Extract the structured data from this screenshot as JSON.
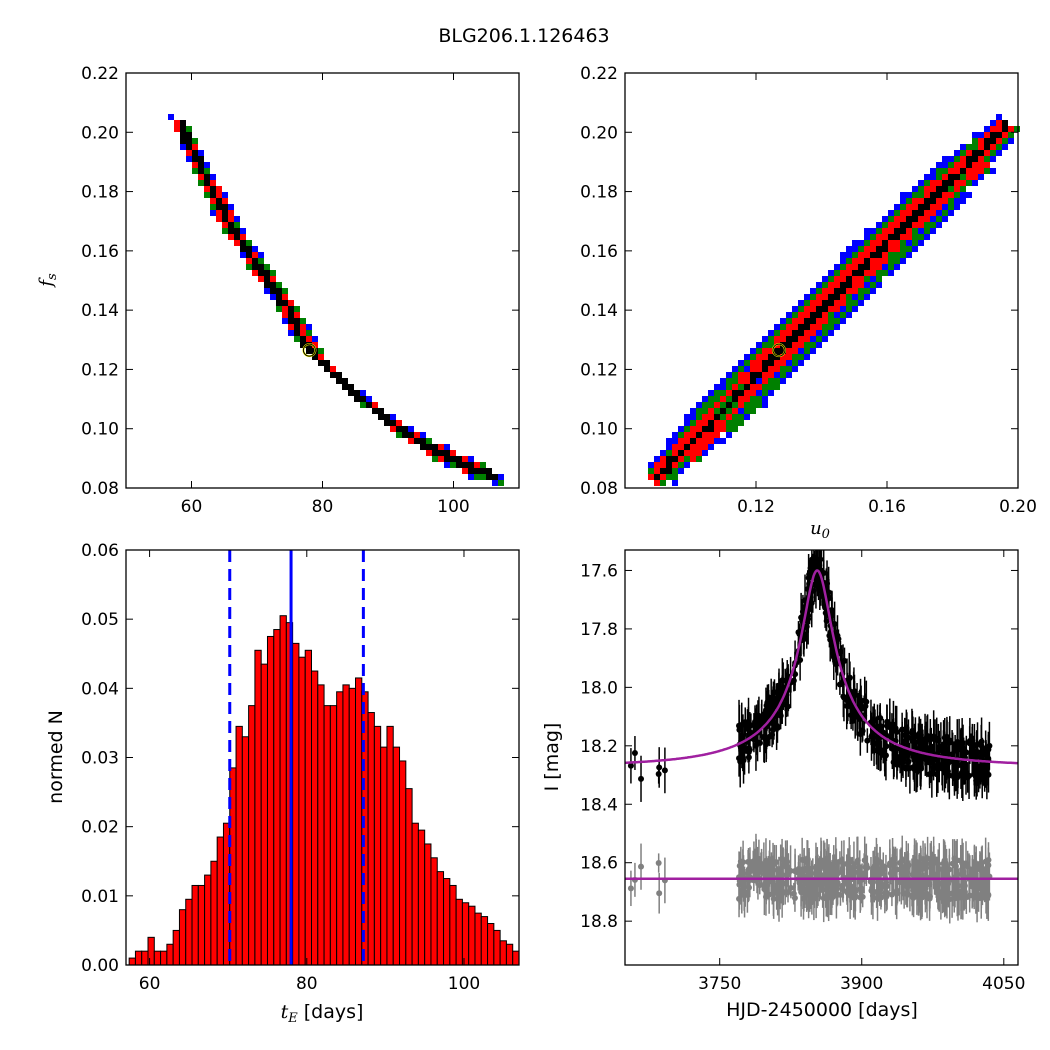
{
  "figure": {
    "title": "BLG206.1.126463"
  },
  "chart_data": [
    {
      "type": "scatter",
      "panel": "top-left",
      "xlabel": "",
      "ylabel": "f_s",
      "xlim": [
        50,
        110
      ],
      "ylim": [
        0.08,
        0.22
      ],
      "xticks": [
        60,
        80,
        100
      ],
      "yticks": [
        0.08,
        0.1,
        0.12,
        0.14,
        0.16,
        0.18,
        0.2,
        0.22
      ],
      "best_fit": {
        "x": 78,
        "y": 0.1265
      },
      "region_colors": [
        "#0000ff",
        "#008000",
        "#ff0000",
        "#000000"
      ],
      "ridge": [
        [
          58,
          0.203
        ],
        [
          62,
          0.185
        ],
        [
          66,
          0.168
        ],
        [
          70,
          0.155
        ],
        [
          74,
          0.143
        ],
        [
          78,
          0.1265
        ],
        [
          84,
          0.114
        ],
        [
          90,
          0.103
        ],
        [
          96,
          0.094
        ],
        [
          102,
          0.088
        ],
        [
          106,
          0.085
        ]
      ]
    },
    {
      "type": "scatter",
      "panel": "top-right",
      "xlabel": "u_0",
      "ylabel": "",
      "xlim": [
        0.08,
        0.2
      ],
      "ylim": [
        0.08,
        0.22
      ],
      "xticks": [
        0.12,
        0.16,
        0.2
      ],
      "yticks": [
        0.08,
        0.1,
        0.12,
        0.14,
        0.16,
        0.18,
        0.2,
        0.22
      ],
      "best_fit": {
        "x": 0.127,
        "y": 0.1265
      },
      "region_colors": [
        "#0000ff",
        "#008000",
        "#ff0000",
        "#000000"
      ],
      "ridge": [
        [
          0.089,
          0.084
        ],
        [
          0.1,
          0.096
        ],
        [
          0.112,
          0.109
        ],
        [
          0.127,
          0.1265
        ],
        [
          0.14,
          0.141
        ],
        [
          0.155,
          0.158
        ],
        [
          0.17,
          0.174
        ],
        [
          0.185,
          0.19
        ],
        [
          0.196,
          0.203
        ]
      ]
    },
    {
      "type": "bar",
      "panel": "bottom-left",
      "xlabel": "t_E [days]",
      "ylabel": "normed N",
      "xlim": [
        57,
        107
      ],
      "ylim": [
        0,
        0.06
      ],
      "xticks": [
        60,
        80,
        100
      ],
      "yticks": [
        0.0,
        0.01,
        0.02,
        0.03,
        0.04,
        0.05,
        0.06
      ],
      "bin_width": 0.8,
      "bin_start": 57.4,
      "values": [
        0.001,
        0.002,
        0.002,
        0.004,
        0.002,
        0.002,
        0.003,
        0.005,
        0.008,
        0.0095,
        0.0115,
        0.0115,
        0.013,
        0.015,
        0.0185,
        0.0205,
        0.0285,
        0.0345,
        0.033,
        0.0375,
        0.0455,
        0.0435,
        0.0475,
        0.0485,
        0.0505,
        0.0495,
        0.0465,
        0.0445,
        0.0455,
        0.0425,
        0.0405,
        0.0375,
        0.0375,
        0.0395,
        0.0405,
        0.04,
        0.0415,
        0.0395,
        0.0365,
        0.0345,
        0.0315,
        0.0345,
        0.0315,
        0.0295,
        0.0255,
        0.0205,
        0.0195,
        0.0175,
        0.0155,
        0.0135,
        0.0125,
        0.0115,
        0.0095,
        0.009,
        0.0085,
        0.0075,
        0.007,
        0.006,
        0.005,
        0.0035,
        0.003,
        0.002,
        0.0015,
        0.001
      ],
      "bar_color": "#ff0000",
      "vlines": [
        {
          "x": 78,
          "style": "solid",
          "color": "#0000ff"
        },
        {
          "x": 70.2,
          "style": "dashed",
          "color": "#0000ff"
        },
        {
          "x": 87.2,
          "style": "dashed",
          "color": "#0000ff"
        }
      ]
    },
    {
      "type": "line",
      "panel": "bottom-right",
      "xlabel": "HJD-2450000 [days]",
      "ylabel": "I [mag]",
      "xlim": [
        3650,
        4065
      ],
      "ylim": [
        18.95,
        17.53
      ],
      "xticks": [
        3750,
        3900,
        4050
      ],
      "yticks": [
        17.6,
        17.8,
        18.0,
        18.2,
        18.4,
        18.6,
        18.8
      ],
      "model": {
        "t0": 3853,
        "peak_mag": 17.6,
        "baseline_mag": 18.27,
        "te": 78,
        "u0": 0.127,
        "color": "#a020a0"
      },
      "residual_baseline": 18.655,
      "data_color": "#000000",
      "residual_color": "#808080"
    }
  ]
}
